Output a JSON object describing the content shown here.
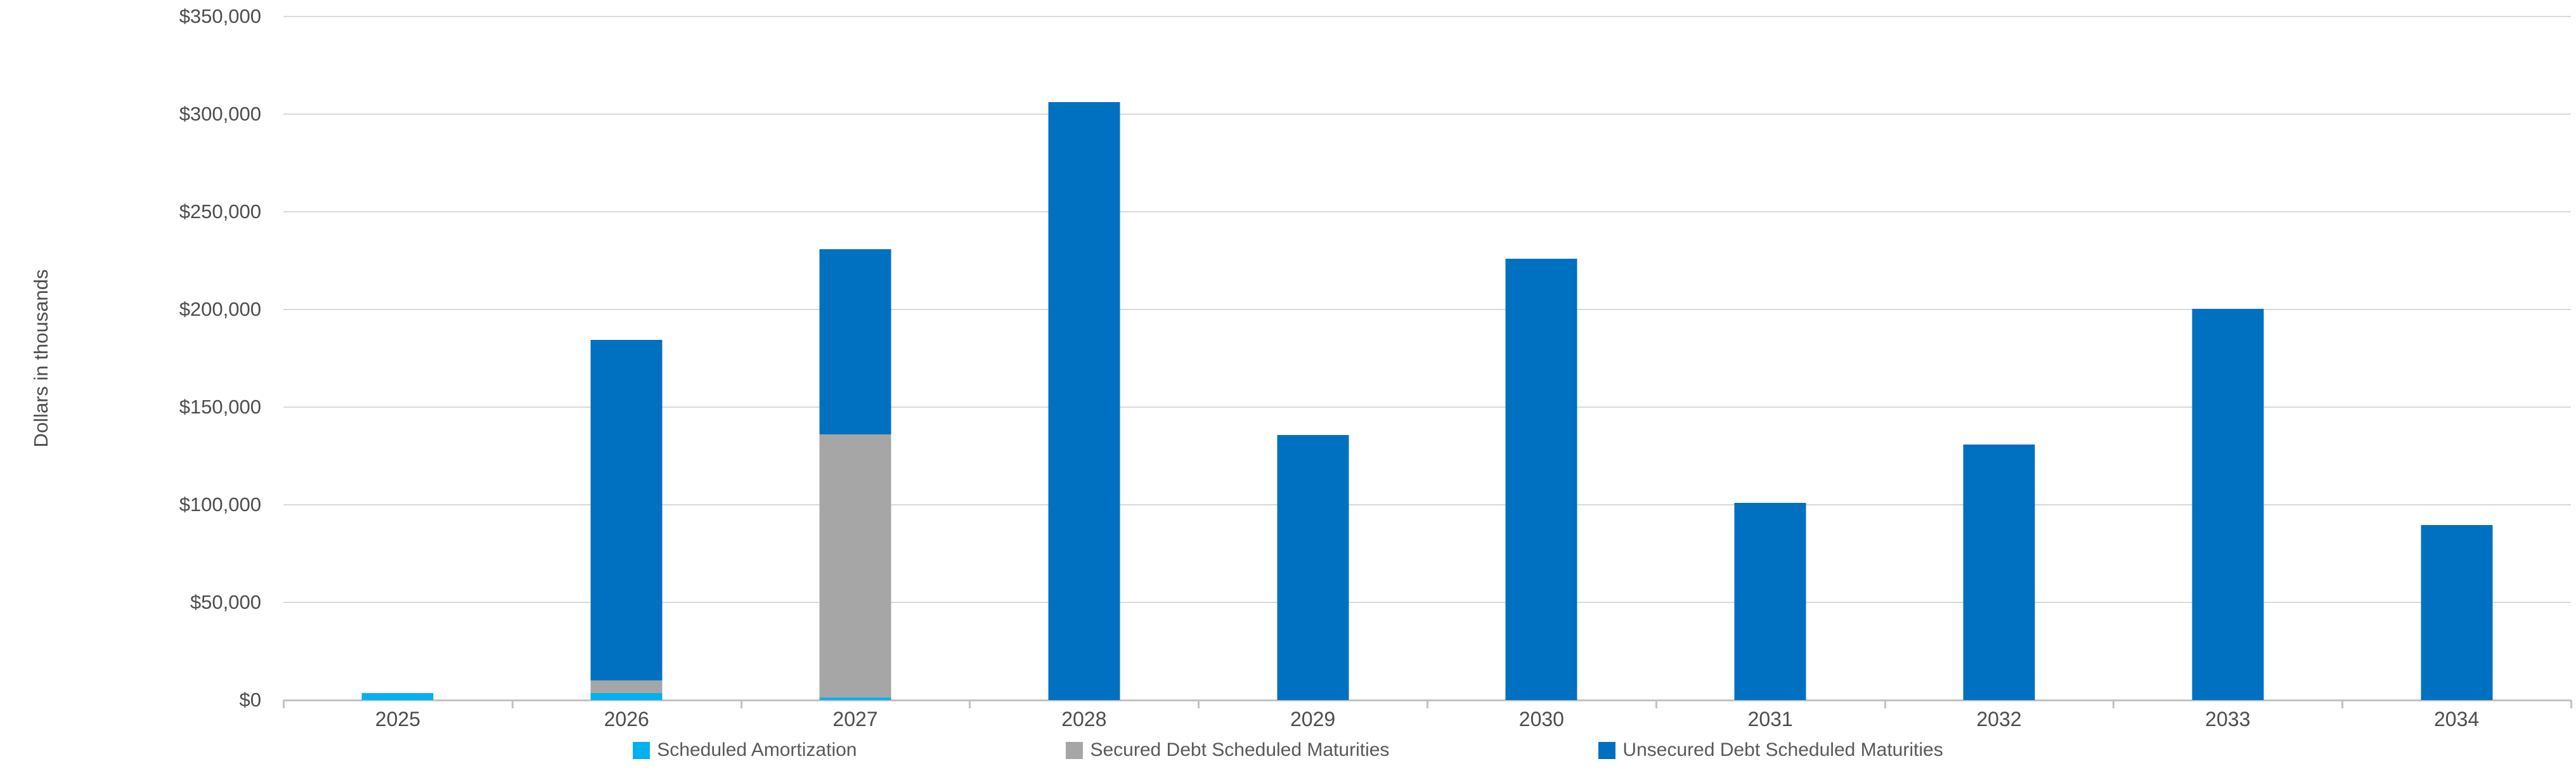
{
  "chart_data": {
    "type": "bar",
    "stacked": true,
    "title": "",
    "xlabel": "",
    "ylabel": "Dollars in thousands",
    "ylim": [
      0,
      350000
    ],
    "ytick_step": 50000,
    "ytick_labels": [
      "$350,000",
      "$300,000",
      "$250,000",
      "$200,000",
      "$150,000",
      "$100,000",
      "$50,000",
      "$0"
    ],
    "grid": true,
    "legend_position": "bottom",
    "categories": [
      "2025",
      "2026",
      "2027",
      "2028",
      "2029",
      "2030",
      "2031",
      "2032",
      "2033",
      "2034"
    ],
    "series": [
      {
        "name": "Scheduled Amortization",
        "color": "#00b0f0",
        "values": [
          3500,
          3700,
          1200,
          0,
          0,
          0,
          0,
          0,
          0,
          0
        ]
      },
      {
        "name": "Secured Debt Scheduled Maturities",
        "color": "#a6a6a6",
        "values": [
          0,
          6300,
          134800,
          0,
          0,
          0,
          0,
          0,
          0,
          0
        ]
      },
      {
        "name": "Unsecured Debt Scheduled Maturities",
        "color": "#0070c0",
        "values": [
          0,
          174500,
          95000,
          306300,
          135700,
          226000,
          101000,
          131000,
          200500,
          89500
        ]
      }
    ]
  },
  "colors": {
    "gridline": "#d9d9d9",
    "axis_line": "#c3c3c3",
    "text": "#4d4d4d"
  }
}
